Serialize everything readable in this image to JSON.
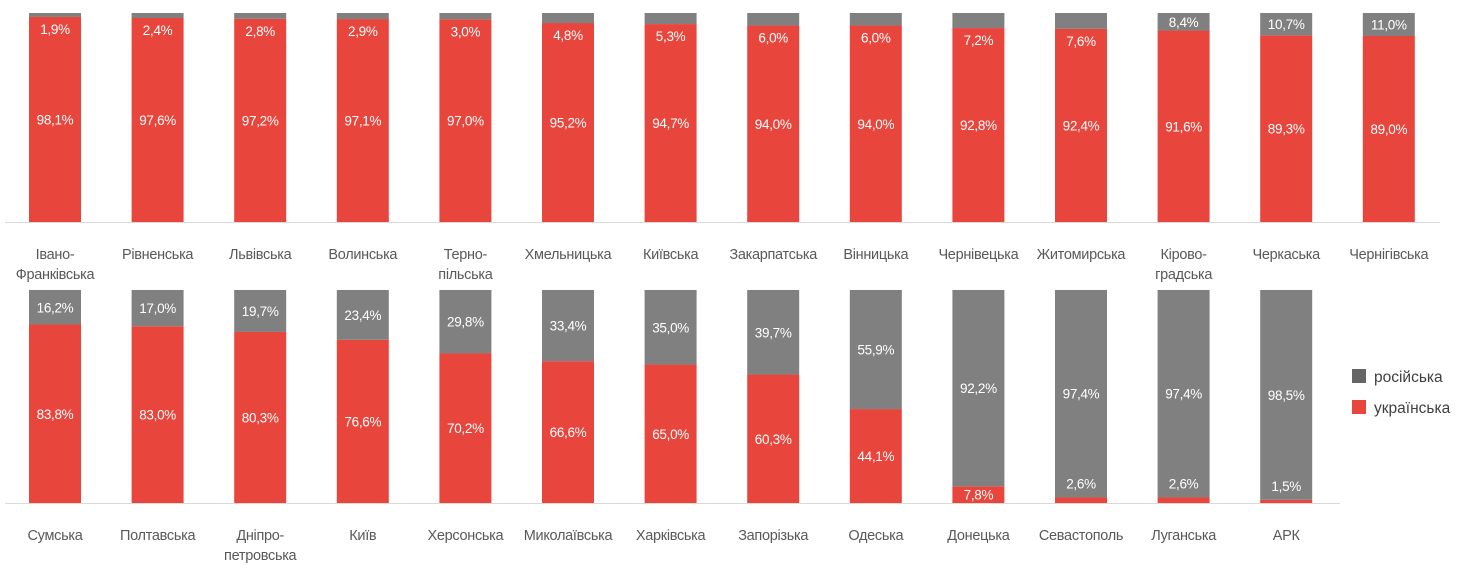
{
  "chart_data": [
    {
      "type": "bar",
      "stacked": true,
      "percent": true,
      "categories": [
        "Івано-\nФранківська",
        "Рівненська",
        "Львівська",
        "Волинська",
        "Терно-\nпільська",
        "Хмельницька",
        "Київська",
        "Закарпатська",
        "Вінницька",
        "Чернівецька",
        "Житомирська",
        "Кірово-\nградська",
        "Черкаська",
        "Чернігівська"
      ],
      "series": [
        {
          "name": "українська",
          "color": "#E8453C",
          "values": [
            98.1,
            97.6,
            97.2,
            97.1,
            97.0,
            95.2,
            94.7,
            94.0,
            94.0,
            92.8,
            92.4,
            91.6,
            89.3,
            89.0
          ],
          "labels": [
            "98,1%",
            "97,6%",
            "97,2%",
            "97,1%",
            "97,0%",
            "95,2%",
            "94,7%",
            "94,0%",
            "94,0%",
            "92,8%",
            "92,4%",
            "91,6%",
            "89,3%",
            "89,0%"
          ]
        },
        {
          "name": "російська",
          "color": "#808080",
          "values": [
            1.9,
            2.4,
            2.8,
            2.9,
            3.0,
            4.8,
            5.3,
            6.0,
            6.0,
            7.2,
            7.6,
            8.4,
            10.7,
            11.0
          ],
          "labels": [
            "1,9%",
            "2,4%",
            "2,8%",
            "2,9%",
            "3,0%",
            "4,8%",
            "5,3%",
            "6,0%",
            "6,0%",
            "7,2%",
            "7,6%",
            "8,4%",
            "10,7%",
            "11,0%"
          ]
        }
      ],
      "ylim": [
        0,
        100
      ],
      "grid": false
    },
    {
      "type": "bar",
      "stacked": true,
      "percent": true,
      "categories": [
        "Сумська",
        "Полтавська",
        "Дніпро-\nпетровська",
        "Київ",
        "Херсонська",
        "Миколаївська",
        "Харківська",
        "Запорізька",
        "Одеська",
        "Донецька",
        "Севастополь",
        "Луганська",
        "АРК"
      ],
      "series": [
        {
          "name": "українська",
          "color": "#E8453C",
          "values": [
            83.8,
            83.0,
            80.3,
            76.6,
            70.2,
            66.6,
            65.0,
            60.3,
            44.1,
            7.8,
            2.6,
            2.6,
            1.5
          ],
          "labels": [
            "83,8%",
            "83,0%",
            "80,3%",
            "76,6%",
            "70,2%",
            "66,6%",
            "65,0%",
            "60,3%",
            "44,1%",
            "7,8%",
            "2,6%",
            "2,6%",
            "1,5%"
          ]
        },
        {
          "name": "російська",
          "color": "#808080",
          "values": [
            16.2,
            17.0,
            19.7,
            23.4,
            29.8,
            33.4,
            35.0,
            39.7,
            55.9,
            92.2,
            97.4,
            97.4,
            98.5
          ],
          "labels": [
            "16,2%",
            "17,0%",
            "19,7%",
            "23,4%",
            "29,8%",
            "33,4%",
            "35,0%",
            "39,7%",
            "55,9%",
            "92,2%",
            "97,4%",
            "97,4%",
            "98,5%"
          ]
        }
      ],
      "ylim": [
        0,
        100
      ],
      "grid": false
    }
  ],
  "legend": {
    "position": "right",
    "items": [
      {
        "label": "російська",
        "color": "#666666"
      },
      {
        "label": "українська",
        "color": "#E8453C"
      }
    ]
  }
}
